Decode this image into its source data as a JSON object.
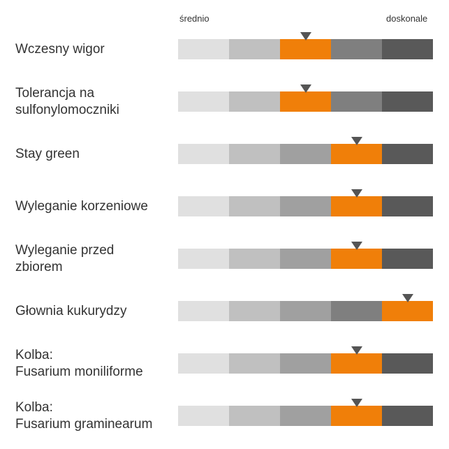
{
  "chart_data": {
    "type": "rating-scale",
    "scale_min_label": "średnio",
    "scale_max_label": "doskonale",
    "levels": 5,
    "segment_colors": [
      "#e0e0e0",
      "#c0c0c0",
      "#a0a0a0",
      "#7f7f7f",
      "#595959"
    ],
    "highlight_color": "#f07f09",
    "marker_color": "#555555",
    "traits": [
      {
        "label": [
          "Wczesny wigor"
        ],
        "rating": 3,
        "marker_in_segment": 0.5
      },
      {
        "label": [
          "Tolerancja na",
          "sulfonylomoczniki"
        ],
        "rating": 3,
        "marker_in_segment": 0.5
      },
      {
        "label": [
          "Stay green"
        ],
        "rating": 4,
        "marker_in_segment": 0.5
      },
      {
        "label": [
          "Wyleganie korzeniowe"
        ],
        "rating": 4,
        "marker_in_segment": 0.5
      },
      {
        "label": [
          "Wyleganie przed",
          "zbiorem"
        ],
        "rating": 4,
        "marker_in_segment": 0.5
      },
      {
        "label": [
          "Głownia kukurydzy"
        ],
        "rating": 5,
        "marker_in_segment": 0.5
      },
      {
        "label": [
          "Kolba:",
          "Fusarium moniliforme"
        ],
        "rating": 4,
        "marker_in_segment": 0.5
      },
      {
        "label": [
          "Kolba:",
          "Fusarium graminearum"
        ],
        "rating": 4,
        "marker_in_segment": 0.5
      }
    ]
  }
}
